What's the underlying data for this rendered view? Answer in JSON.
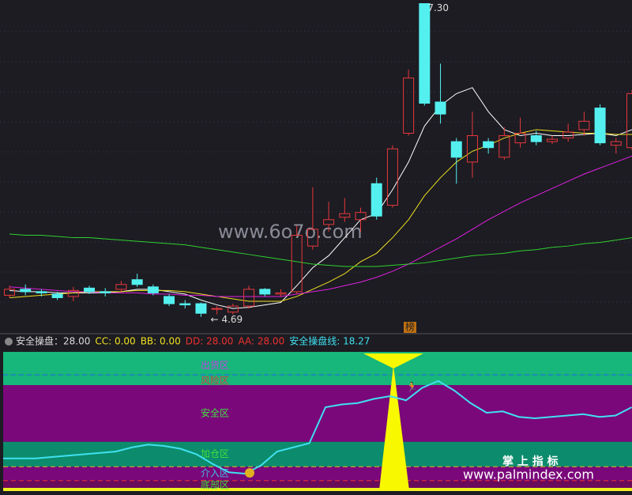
{
  "chart_data": [
    {
      "type": "candlestick",
      "ylim": [
        4.55,
        7.33
      ],
      "up_color": "#e8383c",
      "down_color": "#54f0f0",
      "open": [
        4.87,
        4.92,
        4.9,
        4.88,
        4.86,
        4.93,
        4.9,
        4.92,
        5.0,
        4.94,
        4.86,
        4.8,
        4.8,
        4.76,
        4.73,
        4.78,
        4.92,
        4.88,
        4.9,
        5.28,
        5.46,
        5.52,
        5.5,
        5.8,
        5.62,
        6.22,
        7.3,
        6.48,
        6.15,
        5.98,
        6.15,
        6.02,
        6.14,
        6.2,
        6.15,
        6.18,
        6.25,
        6.43,
        6.12,
        6.1
      ],
      "high": [
        4.95,
        4.96,
        4.92,
        4.9,
        4.94,
        4.95,
        4.93,
        4.99,
        5.05,
        4.96,
        4.88,
        4.83,
        4.81,
        4.78,
        4.8,
        4.95,
        4.93,
        4.92,
        5.45,
        5.77,
        5.65,
        5.68,
        5.6,
        5.85,
        6.12,
        6.75,
        7.3,
        6.8,
        6.18,
        6.4,
        6.18,
        6.27,
        6.35,
        6.24,
        6.2,
        6.3,
        6.4,
        6.46,
        6.18,
        6.58
      ],
      "low": [
        4.85,
        4.87,
        4.86,
        4.83,
        4.82,
        4.88,
        4.86,
        4.9,
        4.94,
        4.87,
        4.78,
        4.76,
        4.69,
        4.71,
        4.71,
        4.76,
        4.86,
        4.86,
        4.88,
        5.25,
        5.4,
        5.48,
        5.4,
        5.5,
        5.6,
        6.2,
        6.45,
        6.3,
        5.8,
        5.85,
        6.05,
        6.0,
        6.1,
        6.12,
        6.13,
        6.15,
        6.2,
        6.12,
        6.05,
        6.08
      ],
      "close": [
        4.92,
        4.9,
        4.89,
        4.85,
        4.91,
        4.9,
        4.89,
        4.96,
        4.96,
        4.89,
        4.8,
        4.79,
        4.72,
        4.76,
        4.78,
        4.92,
        4.88,
        4.89,
        5.37,
        5.42,
        5.5,
        5.55,
        5.56,
        5.53,
        6.09,
        6.68,
        6.47,
        6.38,
        6.02,
        6.2,
        6.1,
        6.2,
        6.22,
        6.15,
        6.17,
        6.23,
        6.32,
        6.14,
        6.15,
        6.55
      ],
      "series": [
        {
          "color": "#ffffff",
          "values": [
            4.91,
            4.9,
            4.9,
            4.89,
            4.89,
            4.89,
            4.89,
            4.9,
            4.92,
            4.92,
            4.9,
            4.88,
            4.83,
            4.79,
            4.76,
            4.77,
            4.79,
            4.81,
            4.95,
            5.1,
            5.2,
            5.35,
            5.5,
            5.55,
            5.75,
            5.98,
            6.28,
            6.45,
            6.55,
            6.6,
            6.4,
            6.25,
            6.2,
            6.22,
            6.2,
            6.2,
            6.21,
            6.22,
            6.2,
            6.25
          ]
        },
        {
          "color": "#f0e020",
          "values": [
            4.85,
            4.86,
            4.87,
            4.88,
            4.89,
            4.9,
            4.9,
            4.9,
            4.91,
            4.91,
            4.91,
            4.9,
            4.88,
            4.86,
            4.84,
            4.82,
            4.82,
            4.82,
            4.86,
            4.92,
            4.98,
            5.05,
            5.15,
            5.22,
            5.35,
            5.5,
            5.7,
            5.85,
            5.98,
            6.07,
            6.12,
            6.18,
            6.22,
            6.25,
            6.24,
            6.23,
            6.22,
            6.22,
            6.21,
            6.21
          ]
        },
        {
          "color": "#e020e0",
          "values": [
            4.94,
            4.93,
            4.92,
            4.91,
            4.9,
            4.9,
            4.89,
            4.89,
            4.89,
            4.88,
            4.88,
            4.87,
            4.87,
            4.86,
            4.86,
            4.86,
            4.86,
            4.86,
            4.88,
            4.9,
            4.92,
            4.95,
            4.98,
            5.02,
            5.07,
            5.13,
            5.2,
            5.27,
            5.34,
            5.42,
            5.5,
            5.57,
            5.64,
            5.7,
            5.76,
            5.82,
            5.88,
            5.93,
            5.98,
            6.03
          ]
        },
        {
          "color": "#30d030",
          "values": [
            5.38,
            5.37,
            5.37,
            5.36,
            5.35,
            5.35,
            5.34,
            5.33,
            5.32,
            5.31,
            5.3,
            5.29,
            5.27,
            5.25,
            5.23,
            5.21,
            5.19,
            5.17,
            5.15,
            5.13,
            5.12,
            5.11,
            5.11,
            5.11,
            5.12,
            5.13,
            5.14,
            5.16,
            5.18,
            5.2,
            5.21,
            5.22,
            5.24,
            5.25,
            5.27,
            5.28,
            5.3,
            5.31,
            5.33,
            5.35
          ]
        }
      ],
      "high_label": "7.30",
      "low_label": "4.69",
      "marker": "榜"
    },
    {
      "type": "zone-line",
      "ylim": [
        0,
        100
      ],
      "zones": [
        {
          "name": "出货区",
          "from": 83.4,
          "to": 100,
          "color": "#17b67a",
          "text_color": "#c040e0"
        },
        {
          "name": "风险区",
          "from": 76,
          "to": 83.4,
          "color": "#17b67a",
          "text_color": "#d04040"
        },
        {
          "name": "安全区",
          "from": 35,
          "to": 76,
          "color": "#7a087a",
          "text_color": "#40e040"
        },
        {
          "name": "加仓区",
          "from": 17,
          "to": 35,
          "color": "#0c8c6c",
          "text_color": "#40e040"
        },
        {
          "name": "介入区",
          "from": 7,
          "to": 17,
          "color": "#7a087a",
          "text_color": "#40c0e0"
        },
        {
          "name": "底部区",
          "from": 0,
          "to": 7,
          "color": "#6a0a5a",
          "text_color": "#40e040"
        }
      ],
      "series": [
        {
          "name": "安全操盘线",
          "color": "#40e0f0",
          "values": [
            23,
            23,
            23,
            24,
            25,
            26,
            27,
            28,
            31,
            33,
            32,
            30,
            26,
            19,
            13,
            12,
            18,
            28,
            31,
            34,
            60,
            62,
            63,
            66,
            68,
            65,
            74,
            79,
            72,
            63,
            56,
            57,
            53,
            52,
            53,
            54,
            55,
            53,
            54,
            60
          ]
        }
      ],
      "header": [
        {
          "text": "安全操盘：28.00",
          "color": "#dddddd"
        },
        {
          "text": "CC: 0.00",
          "color": "#f0e020"
        },
        {
          "text": "BB: 0.00",
          "color": "#f0e020"
        },
        {
          "text": "DD: 28.00",
          "color": "#f03030"
        },
        {
          "text": "AA: 28.00",
          "color": "#f03030"
        },
        {
          "text": "安全操盘线: 18.27",
          "color": "#40e0f0"
        }
      ]
    }
  ],
  "watermarks": [
    "www.6o7o.com",
    "掌 上 指 标",
    "www.palmindex.com"
  ]
}
